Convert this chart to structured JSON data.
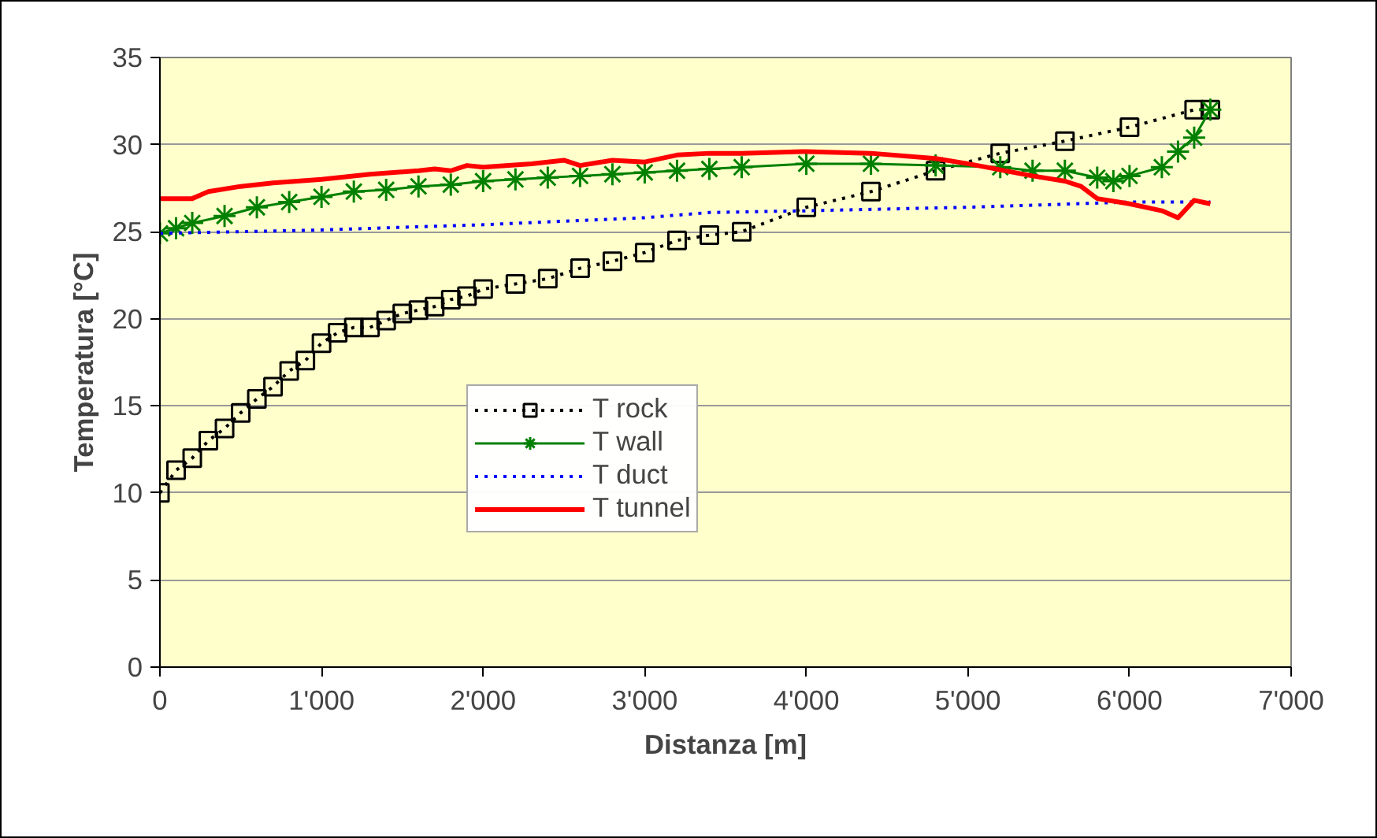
{
  "chart_data": {
    "type": "line",
    "xlabel": "Distanza [m]",
    "ylabel": "Temperatura [°C]",
    "xlim": [
      0,
      7000
    ],
    "ylim": [
      0,
      35
    ],
    "xticks": [
      0,
      {
        "value": 1000,
        "label": "1'000"
      },
      {
        "value": 2000,
        "label": "2'000"
      },
      {
        "value": 3000,
        "label": "3'000"
      },
      {
        "value": 4000,
        "label": "4'000"
      },
      {
        "value": 5000,
        "label": "5'000"
      },
      {
        "value": 6000,
        "label": "6'000"
      },
      {
        "value": 7000,
        "label": "7'000"
      }
    ],
    "yticks": [
      0,
      5,
      10,
      15,
      20,
      25,
      30,
      35
    ],
    "grid": "y",
    "legend": "bottom",
    "series": [
      {
        "name": "T rock",
        "color": "#000000",
        "marker": "square",
        "line_style": "dotted",
        "x": [
          0,
          100,
          200,
          300,
          400,
          500,
          600,
          700,
          800,
          900,
          1000,
          1100,
          1200,
          1300,
          1400,
          1500,
          1600,
          1700,
          1800,
          1900,
          2000,
          2200,
          2400,
          2600,
          2800,
          3000,
          3200,
          3400,
          3600,
          4000,
          4400,
          4800,
          5200,
          5600,
          6000,
          6400,
          6500
        ],
        "values": [
          10,
          11.3,
          12.0,
          13.0,
          13.7,
          14.6,
          15.4,
          16.1,
          17.0,
          17.6,
          18.6,
          19.2,
          19.5,
          19.5,
          19.9,
          20.3,
          20.5,
          20.7,
          21.1,
          21.3,
          21.7,
          22.0,
          22.3,
          22.9,
          23.3,
          23.8,
          24.5,
          24.8,
          25.0,
          26.4,
          27.3,
          28.5,
          29.5,
          30.2,
          31.0,
          32.0,
          32.0
        ]
      },
      {
        "name": "T wall",
        "color": "#008000",
        "marker": "cross",
        "line_style": "solid",
        "x": [
          0,
          100,
          200,
          400,
          600,
          800,
          1000,
          1200,
          1400,
          1600,
          1800,
          2000,
          2200,
          2400,
          2600,
          2800,
          3000,
          3200,
          3400,
          3600,
          4000,
          4400,
          4800,
          5200,
          5400,
          5600,
          5800,
          5900,
          6000,
          6200,
          6300,
          6400,
          6500
        ],
        "values": [
          24.9,
          25.2,
          25.5,
          25.9,
          26.4,
          26.7,
          27.0,
          27.3,
          27.4,
          27.6,
          27.7,
          27.9,
          28.0,
          28.1,
          28.2,
          28.3,
          28.4,
          28.5,
          28.6,
          28.7,
          28.9,
          28.9,
          28.8,
          28.7,
          28.5,
          28.5,
          28.1,
          27.9,
          28.2,
          28.7,
          29.6,
          30.4,
          32.0
        ]
      },
      {
        "name": "T duct",
        "color": "#0000ff",
        "marker": "none",
        "line_style": "dotted",
        "x": [
          0,
          1000,
          2000,
          3000,
          3400,
          4000,
          5000,
          6000,
          6500
        ],
        "values": [
          24.9,
          25.1,
          25.4,
          25.8,
          26.1,
          26.2,
          26.4,
          26.7,
          26.7
        ]
      },
      {
        "name": "T tunnel",
        "color": "#ff0000",
        "marker": "none",
        "line_style": "solid",
        "x": [
          0,
          200,
          300,
          500,
          700,
          1000,
          1300,
          1600,
          1700,
          1800,
          1900,
          2000,
          2300,
          2500,
          2600,
          2800,
          3000,
          3200,
          3400,
          3600,
          4000,
          4400,
          4800,
          5000,
          5400,
          5600,
          5700,
          5800,
          6000,
          6200,
          6300,
          6400,
          6500
        ],
        "values": [
          26.9,
          26.9,
          27.3,
          27.6,
          27.8,
          28.0,
          28.3,
          28.5,
          28.6,
          28.5,
          28.8,
          28.7,
          28.9,
          29.1,
          28.8,
          29.1,
          29.0,
          29.4,
          29.5,
          29.5,
          29.6,
          29.5,
          29.2,
          28.9,
          28.2,
          27.9,
          27.6,
          26.9,
          26.6,
          26.2,
          25.8,
          26.8,
          26.6
        ]
      }
    ]
  }
}
